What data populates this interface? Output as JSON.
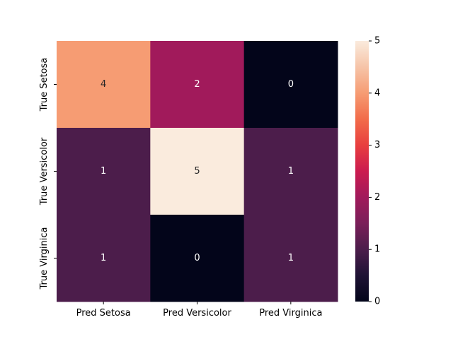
{
  "chart_data": {
    "type": "heatmap",
    "x_categories": [
      "Pred Setosa",
      "Pred Versicolor",
      "Pred Virginica"
    ],
    "y_categories": [
      "True Setosa",
      "True Versicolor",
      "True Virginica"
    ],
    "values": [
      [
        4,
        2,
        0
      ],
      [
        1,
        5,
        1
      ],
      [
        1,
        0,
        1
      ]
    ],
    "annotate": true,
    "colormap": "rocket",
    "color_range": [
      0,
      5
    ],
    "colorbar_ticks": [
      "0",
      "1",
      "2",
      "3",
      "4",
      "5"
    ],
    "title": "",
    "xlabel": "",
    "ylabel": ""
  }
}
